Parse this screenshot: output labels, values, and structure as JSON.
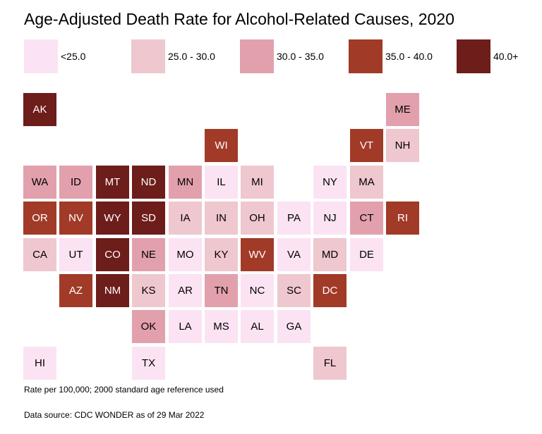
{
  "title": "Age-Adjusted Death Rate for Alcohol-Related Causes, 2020",
  "legend": [
    {
      "label": "<25.0",
      "color": "#fbe3f3"
    },
    {
      "label": "25.0 - 30.0",
      "color": "#efc7cf"
    },
    {
      "label": "30.0 - 35.0",
      "color": "#e2a0ad"
    },
    {
      "label": "35.0 - 40.0",
      "color": "#a23a28"
    },
    {
      "label": "40.0+",
      "color": "#6d1d1a"
    }
  ],
  "states": [
    {
      "abbr": "AK",
      "col": 0,
      "row": 0,
      "bin": 4
    },
    {
      "abbr": "ME",
      "col": 10,
      "row": 0,
      "bin": 2
    },
    {
      "abbr": "WI",
      "col": 5,
      "row": 1,
      "bin": 3
    },
    {
      "abbr": "VT",
      "col": 9,
      "row": 1,
      "bin": 3
    },
    {
      "abbr": "NH",
      "col": 10,
      "row": 1,
      "bin": 1
    },
    {
      "abbr": "WA",
      "col": 0,
      "row": 2,
      "bin": 2
    },
    {
      "abbr": "ID",
      "col": 1,
      "row": 2,
      "bin": 2
    },
    {
      "abbr": "MT",
      "col": 2,
      "row": 2,
      "bin": 4
    },
    {
      "abbr": "ND",
      "col": 3,
      "row": 2,
      "bin": 4
    },
    {
      "abbr": "MN",
      "col": 4,
      "row": 2,
      "bin": 2
    },
    {
      "abbr": "IL",
      "col": 5,
      "row": 2,
      "bin": 0
    },
    {
      "abbr": "MI",
      "col": 6,
      "row": 2,
      "bin": 1
    },
    {
      "abbr": "NY",
      "col": 8,
      "row": 2,
      "bin": 0
    },
    {
      "abbr": "MA",
      "col": 9,
      "row": 2,
      "bin": 1
    },
    {
      "abbr": "OR",
      "col": 0,
      "row": 3,
      "bin": 3
    },
    {
      "abbr": "NV",
      "col": 1,
      "row": 3,
      "bin": 3
    },
    {
      "abbr": "WY",
      "col": 2,
      "row": 3,
      "bin": 4
    },
    {
      "abbr": "SD",
      "col": 3,
      "row": 3,
      "bin": 4
    },
    {
      "abbr": "IA",
      "col": 4,
      "row": 3,
      "bin": 1
    },
    {
      "abbr": "IN",
      "col": 5,
      "row": 3,
      "bin": 1
    },
    {
      "abbr": "OH",
      "col": 6,
      "row": 3,
      "bin": 1
    },
    {
      "abbr": "PA",
      "col": 7,
      "row": 3,
      "bin": 0
    },
    {
      "abbr": "NJ",
      "col": 8,
      "row": 3,
      "bin": 0
    },
    {
      "abbr": "CT",
      "col": 9,
      "row": 3,
      "bin": 2
    },
    {
      "abbr": "RI",
      "col": 10,
      "row": 3,
      "bin": 3
    },
    {
      "abbr": "CA",
      "col": 0,
      "row": 4,
      "bin": 1
    },
    {
      "abbr": "UT",
      "col": 1,
      "row": 4,
      "bin": 0
    },
    {
      "abbr": "CO",
      "col": 2,
      "row": 4,
      "bin": 4
    },
    {
      "abbr": "NE",
      "col": 3,
      "row": 4,
      "bin": 2
    },
    {
      "abbr": "MO",
      "col": 4,
      "row": 4,
      "bin": 0
    },
    {
      "abbr": "KY",
      "col": 5,
      "row": 4,
      "bin": 1
    },
    {
      "abbr": "WV",
      "col": 6,
      "row": 4,
      "bin": 3
    },
    {
      "abbr": "VA",
      "col": 7,
      "row": 4,
      "bin": 0
    },
    {
      "abbr": "MD",
      "col": 8,
      "row": 4,
      "bin": 1
    },
    {
      "abbr": "DE",
      "col": 9,
      "row": 4,
      "bin": 0
    },
    {
      "abbr": "AZ",
      "col": 1,
      "row": 5,
      "bin": 3
    },
    {
      "abbr": "NM",
      "col": 2,
      "row": 5,
      "bin": 4
    },
    {
      "abbr": "KS",
      "col": 3,
      "row": 5,
      "bin": 1
    },
    {
      "abbr": "AR",
      "col": 4,
      "row": 5,
      "bin": 0
    },
    {
      "abbr": "TN",
      "col": 5,
      "row": 5,
      "bin": 2
    },
    {
      "abbr": "NC",
      "col": 6,
      "row": 5,
      "bin": 0
    },
    {
      "abbr": "SC",
      "col": 7,
      "row": 5,
      "bin": 1
    },
    {
      "abbr": "DC",
      "col": 8,
      "row": 5,
      "bin": 3
    },
    {
      "abbr": "OK",
      "col": 3,
      "row": 6,
      "bin": 2
    },
    {
      "abbr": "LA",
      "col": 4,
      "row": 6,
      "bin": 0
    },
    {
      "abbr": "MS",
      "col": 5,
      "row": 6,
      "bin": 0
    },
    {
      "abbr": "AL",
      "col": 6,
      "row": 6,
      "bin": 0
    },
    {
      "abbr": "GA",
      "col": 7,
      "row": 6,
      "bin": 0
    },
    {
      "abbr": "HI",
      "col": 0,
      "row": 7,
      "bin": 0
    },
    {
      "abbr": "TX",
      "col": 3,
      "row": 7,
      "bin": 0
    },
    {
      "abbr": "FL",
      "col": 8,
      "row": 7,
      "bin": 1
    }
  ],
  "notes": {
    "rate_note": "Rate per 100,000; 2000 standard age reference used",
    "source": "Data source: CDC WONDER as of 29 Mar 2022"
  }
}
